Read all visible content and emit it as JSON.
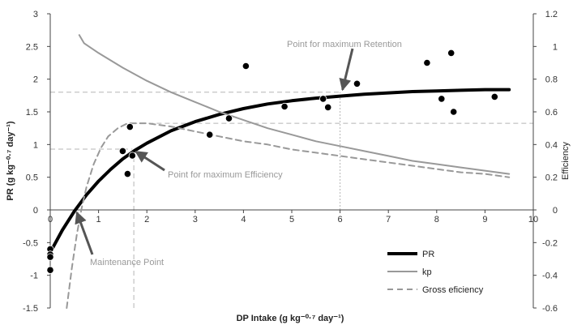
{
  "chart_data": {
    "type": "scatter",
    "x_axis": {
      "label": "DP Intake (g kg⁻⁰·⁷ day⁻¹)",
      "range": [
        0,
        10
      ],
      "ticks": [
        0,
        1,
        2,
        3,
        4,
        5,
        6,
        7,
        8,
        9,
        10
      ]
    },
    "y_axis_left": {
      "label": "PR (g kg⁻⁰·⁷ day⁻¹)",
      "range": [
        -1.5,
        3
      ],
      "ticks": [
        -1.5,
        -1,
        -0.5,
        0,
        0.5,
        1,
        1.5,
        2,
        2.5,
        3
      ],
      "tick_labels": [
        "-1.5",
        "-1",
        "-0.5",
        "0",
        "0.5",
        "1",
        "1.5",
        "2",
        "2.5",
        "3"
      ]
    },
    "y_axis_right": {
      "label": "Efficiency",
      "range": [
        -0.6,
        1.2
      ],
      "ticks": [
        -0.6,
        -0.4,
        -0.2,
        0,
        0.2,
        0.4,
        0.6,
        0.8,
        1,
        1.2
      ],
      "tick_labels": [
        "-0.6",
        "-0.4",
        "-0.2",
        "0",
        "0.2",
        "0.4",
        "0.6",
        "0.8",
        "1",
        "1.2"
      ]
    },
    "series": [
      {
        "name": "PR",
        "kind": "line",
        "axis": "left",
        "color": "#000000",
        "x": [
          0,
          0.25,
          0.5,
          0.75,
          1,
          1.25,
          1.5,
          1.75,
          2,
          2.5,
          3,
          3.5,
          4,
          4.5,
          5,
          5.5,
          6,
          6.5,
          7,
          7.5,
          8,
          8.5,
          9,
          9.5
        ],
        "y": [
          -0.65,
          -0.31,
          -0.02,
          0.23,
          0.44,
          0.62,
          0.78,
          0.91,
          1.02,
          1.21,
          1.35,
          1.46,
          1.55,
          1.62,
          1.67,
          1.71,
          1.74,
          1.77,
          1.79,
          1.81,
          1.82,
          1.83,
          1.84,
          1.84
        ]
      },
      {
        "name": "kp",
        "kind": "line",
        "axis": "right",
        "color": "#999999",
        "x": [
          0.6,
          0.7,
          1,
          1.5,
          2,
          2.5,
          3,
          3.5,
          4,
          4.5,
          5,
          5.5,
          6,
          6.5,
          7,
          7.5,
          8,
          8.5,
          9,
          9.5
        ],
        "y": [
          1.07,
          1.02,
          0.96,
          0.87,
          0.79,
          0.72,
          0.66,
          0.6,
          0.55,
          0.5,
          0.46,
          0.42,
          0.39,
          0.36,
          0.33,
          0.3,
          0.28,
          0.26,
          0.24,
          0.22
        ]
      },
      {
        "name": "Gross eficiency",
        "kind": "line",
        "axis": "right",
        "dashed": true,
        "color": "#999999",
        "x": [
          0.34,
          0.45,
          0.55,
          0.65,
          0.75,
          0.9,
          1.05,
          1.2,
          1.4,
          1.6,
          1.8,
          2,
          2.5,
          3,
          3.5,
          4,
          4.5,
          5,
          5.5,
          6,
          6.5,
          7,
          7.5,
          8,
          8.5,
          9,
          9.5
        ],
        "y": [
          -0.6,
          -0.35,
          -0.15,
          0.01,
          0.14,
          0.28,
          0.38,
          0.45,
          0.5,
          0.53,
          0.53,
          0.53,
          0.51,
          0.48,
          0.45,
          0.42,
          0.4,
          0.37,
          0.35,
          0.33,
          0.31,
          0.29,
          0.27,
          0.25,
          0.23,
          0.22,
          0.2
        ]
      },
      {
        "name": "observed",
        "kind": "scatter",
        "axis": "left",
        "color": "#000000",
        "x": [
          0,
          0,
          0,
          0,
          1.5,
          1.6,
          1.65,
          1.7,
          3.3,
          3.7,
          4.05,
          4.85,
          5.65,
          5.75,
          6.35,
          7.8,
          8.1,
          8.3,
          8.35,
          9.2
        ],
        "y": [
          -0.6,
          -0.68,
          -0.72,
          -0.92,
          0.9,
          0.55,
          1.27,
          0.83,
          1.15,
          1.4,
          2.2,
          1.58,
          1.7,
          1.57,
          1.93,
          2.25,
          1.7,
          2.4,
          1.5,
          1.73
        ]
      }
    ],
    "reference_lines": [
      {
        "orientation": "horizontal",
        "axis": "left",
        "y": 1.8,
        "x_range": [
          0,
          6
        ],
        "style": "dashed"
      },
      {
        "orientation": "horizontal",
        "axis": "left",
        "y": 0.93,
        "x_range": [
          0,
          1.7
        ],
        "style": "dashed"
      },
      {
        "orientation": "horizontal",
        "axis": "right",
        "y": 0.53,
        "x_range": [
          1.7,
          10
        ],
        "style": "dashed"
      },
      {
        "orientation": "vertical",
        "x": 1.73,
        "axis": "left",
        "y_range": [
          -1.5,
          0.93
        ],
        "style": "dashed"
      },
      {
        "orientation": "vertical",
        "x": 6,
        "axis": "left",
        "y_range": [
          0,
          1.8
        ],
        "style": "dotted"
      }
    ],
    "annotations": [
      {
        "text": "Point for maximum Retention",
        "x": 6,
        "y": 1.8
      },
      {
        "text": "Point for maximum Efficiency",
        "x": 1.72,
        "y": 0.93
      },
      {
        "text": "Maintenance Point",
        "x": 0.5,
        "y": 0
      }
    ],
    "legend": {
      "position": "bottom-right",
      "entries": [
        {
          "label": "PR",
          "series": "PR"
        },
        {
          "label": "kp",
          "series": "kp"
        },
        {
          "label": "Gross eficiency",
          "series": "Gross eficiency"
        }
      ]
    },
    "grid": false
  }
}
